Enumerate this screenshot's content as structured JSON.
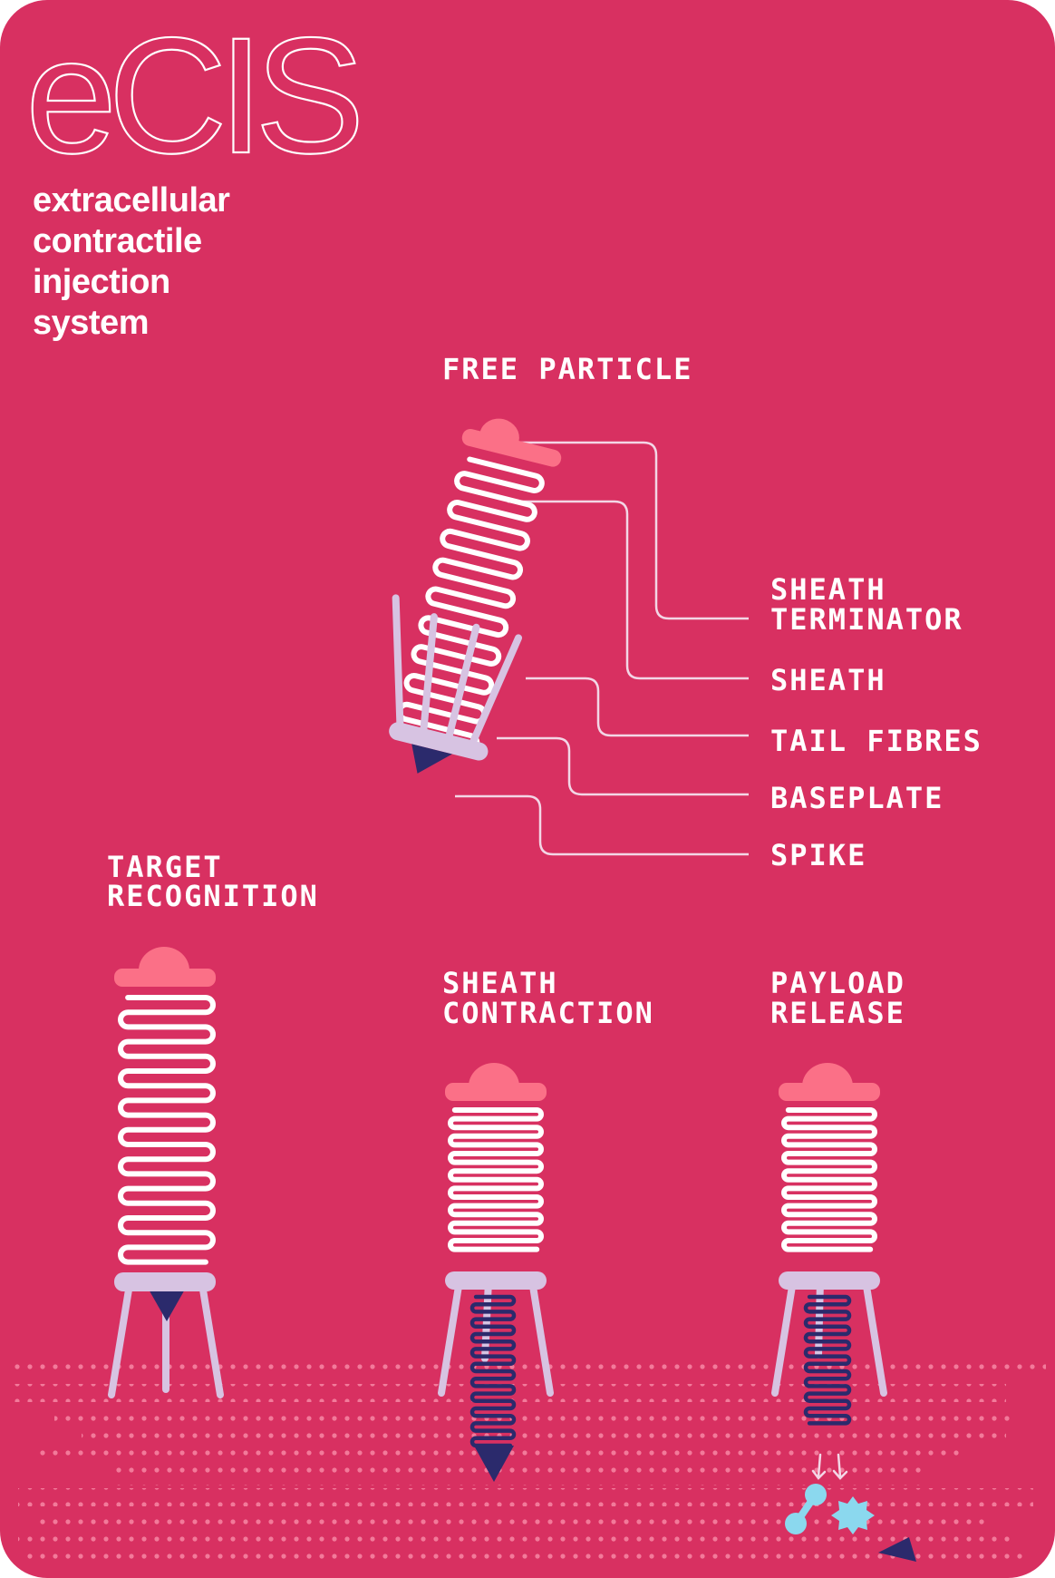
{
  "logo": "eCIS",
  "subtitle": [
    "extracellular",
    "contractile",
    "injection",
    "system"
  ],
  "stages": {
    "free_particle": "FREE PARTICLE",
    "target_recognition": [
      "TARGET",
      "RECOGNITION"
    ],
    "sheath_contraction": [
      "SHEATH",
      "CONTRACTION"
    ],
    "payload_release": [
      "PAYLOAD",
      "RELEASE"
    ]
  },
  "parts": {
    "sheath_terminator": [
      "SHEATH",
      "TERMINATOR"
    ],
    "sheath": "SHEATH",
    "tail_fibres": "TAIL FIBRES",
    "baseplate": "BASEPLATE",
    "spike": "SPIKE"
  },
  "colors": {
    "background": "#d83061",
    "sheath": "#ffffff",
    "sheath_terminator": "#fb7087",
    "baseplate_and_fibres": "#d7c3e2",
    "spike": "#2b2a6c",
    "payload": "#8bd8ee",
    "membrane_dots": "#f27a9a"
  }
}
